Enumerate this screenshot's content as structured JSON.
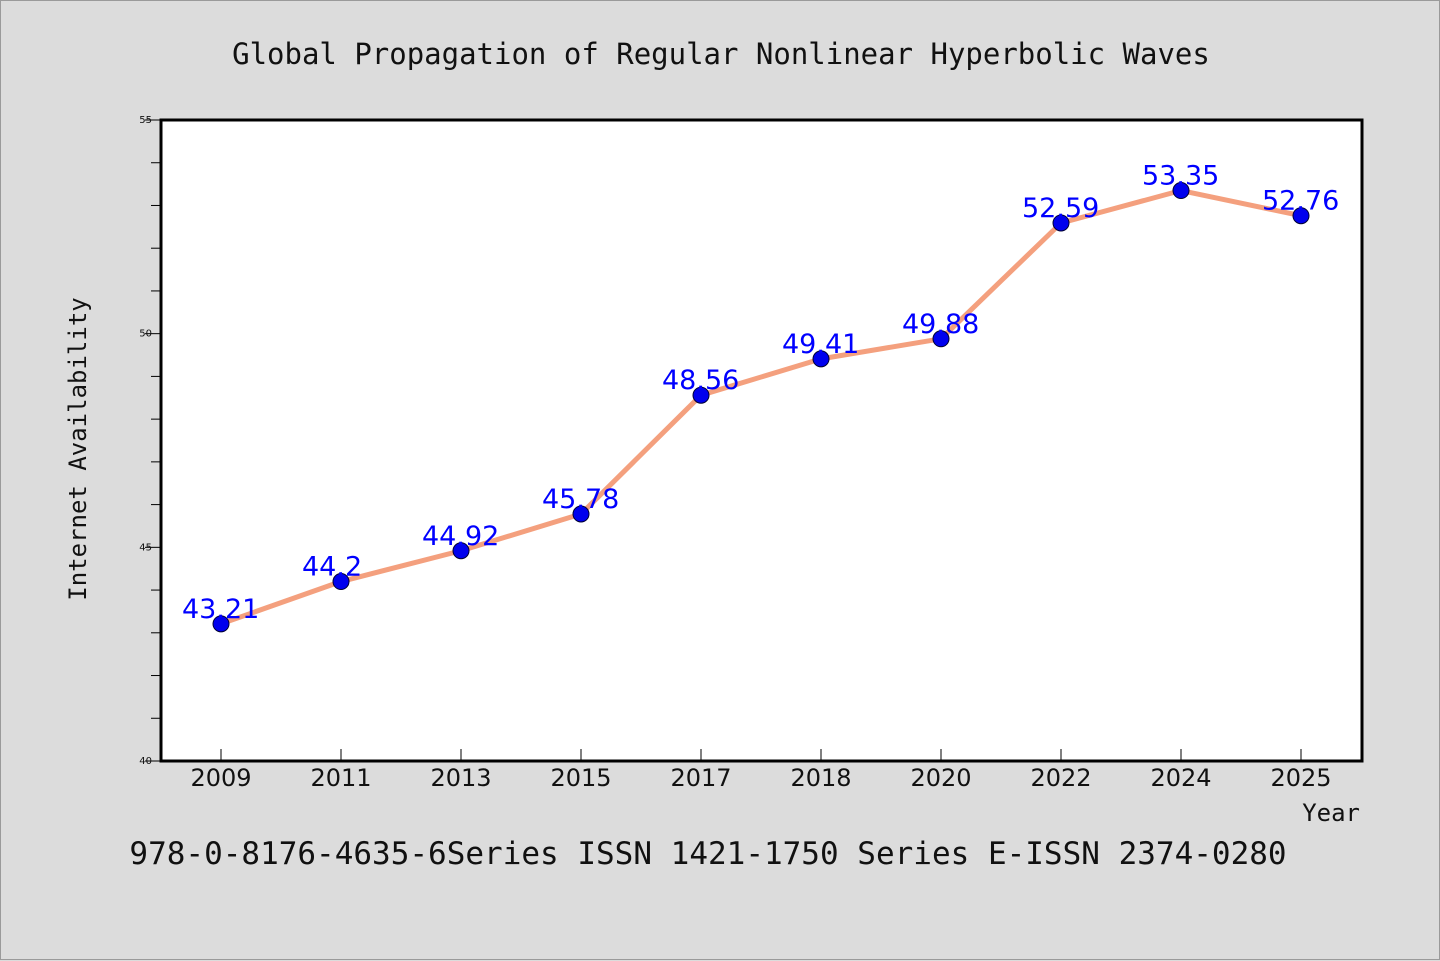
{
  "chart_data": {
    "type": "line",
    "title": "Global Propagation of Regular Nonlinear Hyperbolic Waves",
    "xlabel": "Year",
    "ylabel": "Internet Availability",
    "categories": [
      "2009",
      "2011",
      "2013",
      "2015",
      "2017",
      "2018",
      "2020",
      "2022",
      "2024",
      "2025"
    ],
    "series": [
      {
        "values": [
          43.21,
          44.2,
          44.92,
          45.78,
          48.56,
          49.41,
          49.88,
          52.59,
          53.35,
          52.76
        ],
        "data_labels": [
          "43.21",
          "44.2",
          "44.92",
          "45.78",
          "48.56",
          "49.41",
          "49.88",
          "52.59",
          "53.35",
          "52.76"
        ]
      }
    ],
    "ylim": [
      40,
      55
    ],
    "yticks": [
      "40",
      "45",
      "50",
      "55"
    ],
    "grid": false,
    "legend": "none",
    "footer": "978-0-8176-4635-6Series ISSN 1421-1750 Series E-ISSN 2374-0280",
    "colors": {
      "background": "#dcdcdc",
      "plot_background": "#ffffff",
      "line": "#f4a07e",
      "marker": "#0000ee",
      "data_label": "#0000ff",
      "text": "#111111"
    }
  }
}
